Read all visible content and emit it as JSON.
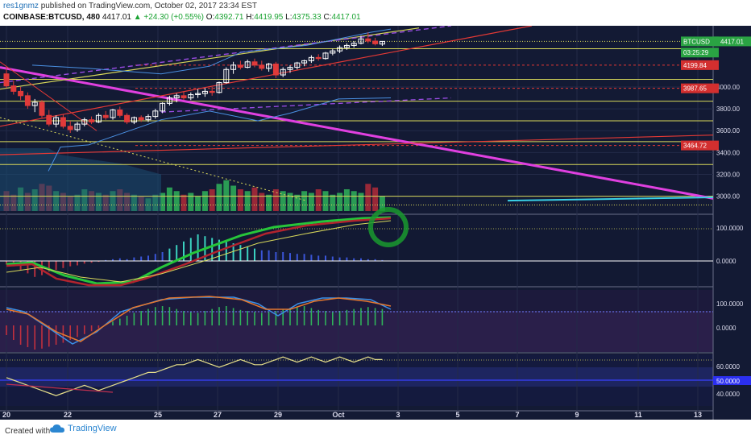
{
  "header": {
    "author": "res1gnmz",
    "published_text": "published on TradingView.com, October 02, 2017 23:34 EST",
    "symbol": "COINBASE:BTCUSD, 480",
    "last": "4417.01",
    "change": "▲ +24.30 (+0.55%)",
    "o_label": "O:",
    "o_value": "4392.71",
    "h_label": "H:",
    "h_value": "4419.95",
    "l_label": "L:",
    "l_value": "4375.33",
    "c_label": "C:",
    "c_value": "4417.01"
  },
  "footer": {
    "created_with": "Created with",
    "brand": "TradingView"
  },
  "colors": {
    "background": "#131a34",
    "up_candle": "#ffffff",
    "down_candle": "#e03a3a",
    "trend_magenta": "#e040e0",
    "support_yellow": "#d8d85a",
    "resistance_red": "#e53935",
    "volume_green": "#2fb35a",
    "volume_red": "#b22b3a",
    "cyan_line": "#3ad1e6",
    "label_green": "#2aa343",
    "label_red": "#d32f2f"
  },
  "chart_data": {
    "type": "candlestick",
    "price_axis": {
      "ylim": [
        2850,
        4560
      ],
      "ticks": [
        "3000.00",
        "3200.00",
        "3400.00",
        "3600.00",
        "3800.00",
        "4000.00"
      ],
      "labels": [
        {
          "text": "BTCUSD",
          "value": "4417.01",
          "color": "#2aa343",
          "price": 4417.01
        },
        {
          "text": "03:25:29",
          "color": "#2aa343",
          "price": 4315
        },
        {
          "text": "4199.84",
          "color": "#d32f2f",
          "price": 4199.84
        },
        {
          "text": "3987.65",
          "color": "#d32f2f",
          "price": 3987.65
        },
        {
          "text": "3464.72",
          "color": "#d32f2f",
          "price": 3464.72
        }
      ]
    },
    "x_axis": {
      "ticks": [
        "20",
        "22",
        "25",
        "27",
        "29",
        "Oct",
        "3",
        "5",
        "7",
        "9",
        "11",
        "13"
      ]
    },
    "candles": [
      {
        "o": 4120,
        "h": 4180,
        "l": 3990,
        "c": 4010
      },
      {
        "o": 4010,
        "h": 4060,
        "l": 3930,
        "c": 3960
      },
      {
        "o": 3960,
        "h": 4000,
        "l": 3880,
        "c": 3920
      },
      {
        "o": 3920,
        "h": 3950,
        "l": 3800,
        "c": 3830
      },
      {
        "o": 3830,
        "h": 3890,
        "l": 3770,
        "c": 3860
      },
      {
        "o": 3860,
        "h": 3880,
        "l": 3720,
        "c": 3740
      },
      {
        "o": 3740,
        "h": 3790,
        "l": 3640,
        "c": 3660
      },
      {
        "o": 3660,
        "h": 3740,
        "l": 3630,
        "c": 3720
      },
      {
        "o": 3720,
        "h": 3750,
        "l": 3620,
        "c": 3640
      },
      {
        "o": 3640,
        "h": 3690,
        "l": 3580,
        "c": 3610
      },
      {
        "o": 3610,
        "h": 3680,
        "l": 3590,
        "c": 3660
      },
      {
        "o": 3660,
        "h": 3720,
        "l": 3640,
        "c": 3700
      },
      {
        "o": 3700,
        "h": 3730,
        "l": 3660,
        "c": 3680
      },
      {
        "o": 3680,
        "h": 3760,
        "l": 3670,
        "c": 3740
      },
      {
        "o": 3740,
        "h": 3780,
        "l": 3700,
        "c": 3720
      },
      {
        "o": 3720,
        "h": 3800,
        "l": 3700,
        "c": 3790
      },
      {
        "o": 3790,
        "h": 3820,
        "l": 3720,
        "c": 3740
      },
      {
        "o": 3740,
        "h": 3760,
        "l": 3660,
        "c": 3680
      },
      {
        "o": 3680,
        "h": 3730,
        "l": 3660,
        "c": 3720
      },
      {
        "o": 3720,
        "h": 3740,
        "l": 3680,
        "c": 3700
      },
      {
        "o": 3700,
        "h": 3750,
        "l": 3680,
        "c": 3730
      },
      {
        "o": 3730,
        "h": 3800,
        "l": 3710,
        "c": 3780
      },
      {
        "o": 3780,
        "h": 3860,
        "l": 3760,
        "c": 3850
      },
      {
        "o": 3850,
        "h": 3920,
        "l": 3830,
        "c": 3900
      },
      {
        "o": 3900,
        "h": 3940,
        "l": 3860,
        "c": 3920
      },
      {
        "o": 3920,
        "h": 3960,
        "l": 3880,
        "c": 3900
      },
      {
        "o": 3900,
        "h": 3950,
        "l": 3880,
        "c": 3930
      },
      {
        "o": 3930,
        "h": 3980,
        "l": 3900,
        "c": 3940
      },
      {
        "o": 3940,
        "h": 3990,
        "l": 3910,
        "c": 3960
      },
      {
        "o": 3960,
        "h": 4000,
        "l": 3920,
        "c": 3950
      },
      {
        "o": 3950,
        "h": 4050,
        "l": 3940,
        "c": 4040
      },
      {
        "o": 4040,
        "h": 4180,
        "l": 4030,
        "c": 4160
      },
      {
        "o": 4160,
        "h": 4230,
        "l": 4120,
        "c": 4200
      },
      {
        "o": 4200,
        "h": 4240,
        "l": 4160,
        "c": 4180
      },
      {
        "o": 4180,
        "h": 4250,
        "l": 4170,
        "c": 4230
      },
      {
        "o": 4230,
        "h": 4260,
        "l": 4180,
        "c": 4200
      },
      {
        "o": 4200,
        "h": 4240,
        "l": 4150,
        "c": 4170
      },
      {
        "o": 4170,
        "h": 4220,
        "l": 4140,
        "c": 4210
      },
      {
        "o": 4210,
        "h": 4230,
        "l": 4080,
        "c": 4110
      },
      {
        "o": 4110,
        "h": 4180,
        "l": 4090,
        "c": 4160
      },
      {
        "o": 4160,
        "h": 4200,
        "l": 4130,
        "c": 4180
      },
      {
        "o": 4180,
        "h": 4230,
        "l": 4160,
        "c": 4220
      },
      {
        "o": 4220,
        "h": 4250,
        "l": 4190,
        "c": 4240
      },
      {
        "o": 4240,
        "h": 4290,
        "l": 4220,
        "c": 4270
      },
      {
        "o": 4270,
        "h": 4300,
        "l": 4240,
        "c": 4260
      },
      {
        "o": 4260,
        "h": 4320,
        "l": 4250,
        "c": 4310
      },
      {
        "o": 4310,
        "h": 4350,
        "l": 4290,
        "c": 4330
      },
      {
        "o": 4330,
        "h": 4380,
        "l": 4310,
        "c": 4360
      },
      {
        "o": 4360,
        "h": 4400,
        "l": 4340,
        "c": 4380
      },
      {
        "o": 4380,
        "h": 4420,
        "l": 4360,
        "c": 4400
      },
      {
        "o": 4400,
        "h": 4470,
        "l": 4390,
        "c": 4440
      },
      {
        "o": 4440,
        "h": 4500,
        "l": 4400,
        "c": 4420
      },
      {
        "o": 4420,
        "h": 4450,
        "l": 4380,
        "c": 4395
      },
      {
        "o": 4392.71,
        "h": 4419.95,
        "l": 4375.33,
        "c": 4417.01
      }
    ],
    "horizontal_levels": [
      {
        "price": 4417.01,
        "color": "#d8d85a",
        "style": "dotted"
      },
      {
        "price": 4350,
        "color": "#d8d85a",
        "style": "solid"
      },
      {
        "price": 4199.84,
        "color": "#e53935",
        "style": "dashed"
      },
      {
        "price": 4070,
        "color": "#d8d85a",
        "style": "solid"
      },
      {
        "price": 3987.65,
        "color": "#e53935",
        "style": "dashed"
      },
      {
        "price": 3870,
        "color": "#d8d85a",
        "style": "solid"
      },
      {
        "price": 3690,
        "color": "#d8d85a",
        "style": "solid"
      },
      {
        "price": 3500,
        "color": "#d8d85a",
        "style": "solid"
      },
      {
        "price": 3464.72,
        "color": "#e53935",
        "style": "dashed"
      },
      {
        "price": 3290,
        "color": "#d8d85a",
        "style": "solid"
      },
      {
        "price": 3000,
        "color": "#d8d85a",
        "style": "solid"
      },
      {
        "price": 2920,
        "color": "#d8d85a",
        "style": "dotted"
      }
    ],
    "volume": [
      22,
      18,
      26,
      20,
      24,
      30,
      28,
      22,
      20,
      16,
      18,
      24,
      22,
      20,
      18,
      22,
      24,
      20,
      18,
      16,
      14,
      18,
      20,
      26,
      22,
      18,
      20,
      16,
      22,
      24,
      30,
      34,
      28,
      24,
      22,
      26,
      20,
      18,
      24,
      22,
      20,
      18,
      22,
      20,
      24,
      22,
      18,
      20,
      24,
      22,
      20,
      30,
      26,
      16
    ],
    "volume_up": [
      0,
      0,
      1,
      0,
      1,
      0,
      0,
      1,
      0,
      0,
      1,
      1,
      0,
      1,
      0,
      1,
      0,
      0,
      1,
      0,
      1,
      1,
      1,
      1,
      1,
      0,
      1,
      1,
      1,
      0,
      1,
      1,
      1,
      0,
      1,
      0,
      0,
      1,
      0,
      1,
      1,
      1,
      1,
      1,
      0,
      1,
      1,
      1,
      1,
      1,
      1,
      0,
      0,
      1
    ],
    "macd_hist": [
      -4,
      -6,
      -10,
      -14,
      -18,
      -16,
      -12,
      -10,
      -8,
      -6,
      -5,
      -3,
      -2,
      -1,
      1,
      2,
      3,
      2,
      4,
      5,
      6,
      8,
      10,
      14,
      18,
      22,
      26,
      30,
      28,
      26,
      24,
      22,
      20,
      18,
      16,
      14,
      12,
      12,
      10,
      10,
      9,
      8,
      8,
      7,
      6,
      6,
      5,
      4,
      4,
      3,
      3,
      2,
      2,
      1
    ],
    "stoch_hist": [
      -20,
      -30,
      -40,
      -45,
      -50,
      -48,
      -44,
      -40,
      -36,
      -30,
      -24,
      -18,
      -12,
      -6,
      0,
      8,
      14,
      20,
      26,
      30,
      34,
      38,
      40,
      38,
      34,
      30,
      28,
      26,
      30,
      34,
      38,
      40,
      36,
      32,
      30,
      28,
      26,
      28,
      30,
      34,
      36,
      38,
      40,
      36,
      32,
      30,
      28,
      30,
      32,
      34,
      36,
      38,
      36,
      34
    ],
    "rsi": [
      52,
      50,
      48,
      46,
      44,
      42,
      40,
      38,
      40,
      42,
      44,
      46,
      44,
      42,
      44,
      46,
      48,
      50,
      52,
      54,
      56,
      56,
      58,
      60,
      62,
      62,
      64,
      66,
      64,
      62,
      60,
      62,
      64,
      66,
      64,
      62,
      62,
      64,
      66,
      68,
      66,
      64,
      66,
      68,
      66,
      64,
      66,
      68,
      66,
      64,
      66,
      68,
      66,
      66
    ]
  }
}
